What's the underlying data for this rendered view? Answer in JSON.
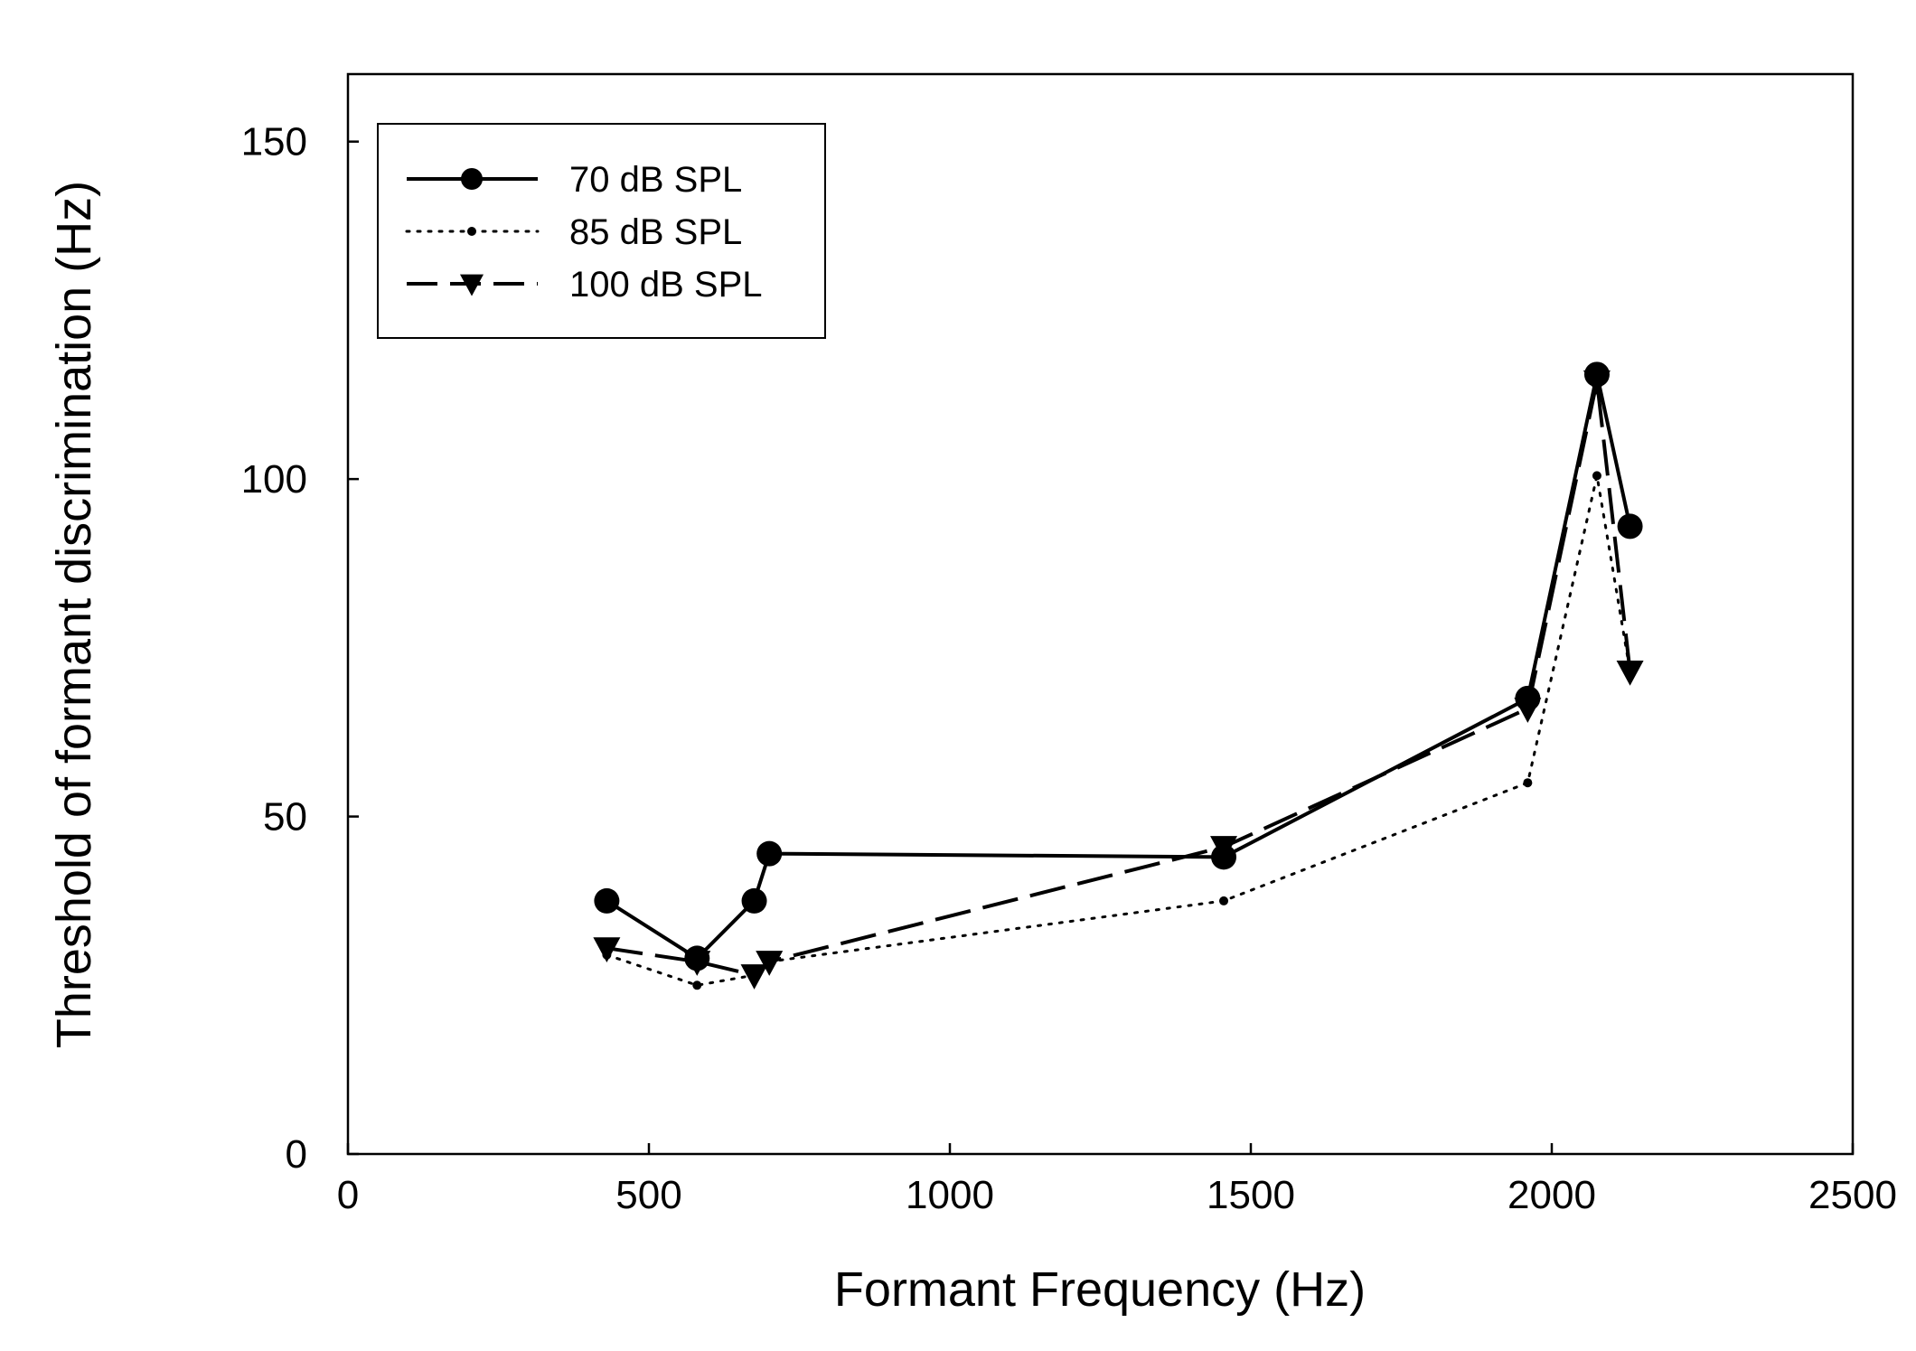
{
  "chart_data": {
    "type": "line",
    "title": "",
    "xlabel": "Formant Frequency (Hz)",
    "ylabel": "Threshold of formant discrimination (Hz)",
    "xlim": [
      0,
      2500
    ],
    "ylim": [
      0,
      160
    ],
    "xticks": [
      0,
      500,
      1000,
      1500,
      2000,
      2500
    ],
    "yticks": [
      0,
      50,
      100,
      150
    ],
    "legend_position": "top-left",
    "grid": false,
    "series": [
      {
        "name": "70 dB SPL",
        "style": "solid",
        "marker": "circle",
        "points": [
          {
            "x": 430,
            "y": 37.5
          },
          {
            "x": 580,
            "y": 29
          },
          {
            "x": 675,
            "y": 37.5
          },
          {
            "x": 700,
            "y": 44.5
          },
          {
            "x": 1455,
            "y": 44
          },
          {
            "x": 1960,
            "y": 67.5
          },
          {
            "x": 2075,
            "y": 115.5
          },
          {
            "x": 2130,
            "y": 93
          }
        ]
      },
      {
        "name": "85 dB SPL",
        "style": "dotted",
        "marker": "dot",
        "points": [
          {
            "x": 430,
            "y": 29.5
          },
          {
            "x": 580,
            "y": 25
          },
          {
            "x": 675,
            "y": 26.5
          },
          {
            "x": 700,
            "y": 28.5
          },
          {
            "x": 1455,
            "y": 37.5
          },
          {
            "x": 1960,
            "y": 55
          },
          {
            "x": 2075,
            "y": 100.5
          },
          {
            "x": 2130,
            "y": 71.5
          }
        ]
      },
      {
        "name": "100 dB SPL",
        "style": "dashed",
        "marker": "triangle-down",
        "points": [
          {
            "x": 430,
            "y": 30.5
          },
          {
            "x": 580,
            "y": 28.5
          },
          {
            "x": 675,
            "y": 26.5
          },
          {
            "x": 700,
            "y": 28.5
          },
          {
            "x": 1455,
            "y": 45.5
          },
          {
            "x": 1960,
            "y": 66
          },
          {
            "x": 2075,
            "y": 114.5
          },
          {
            "x": 2130,
            "y": 71.5
          }
        ]
      }
    ]
  },
  "colors": {
    "line": "#000000",
    "background": "#ffffff"
  }
}
